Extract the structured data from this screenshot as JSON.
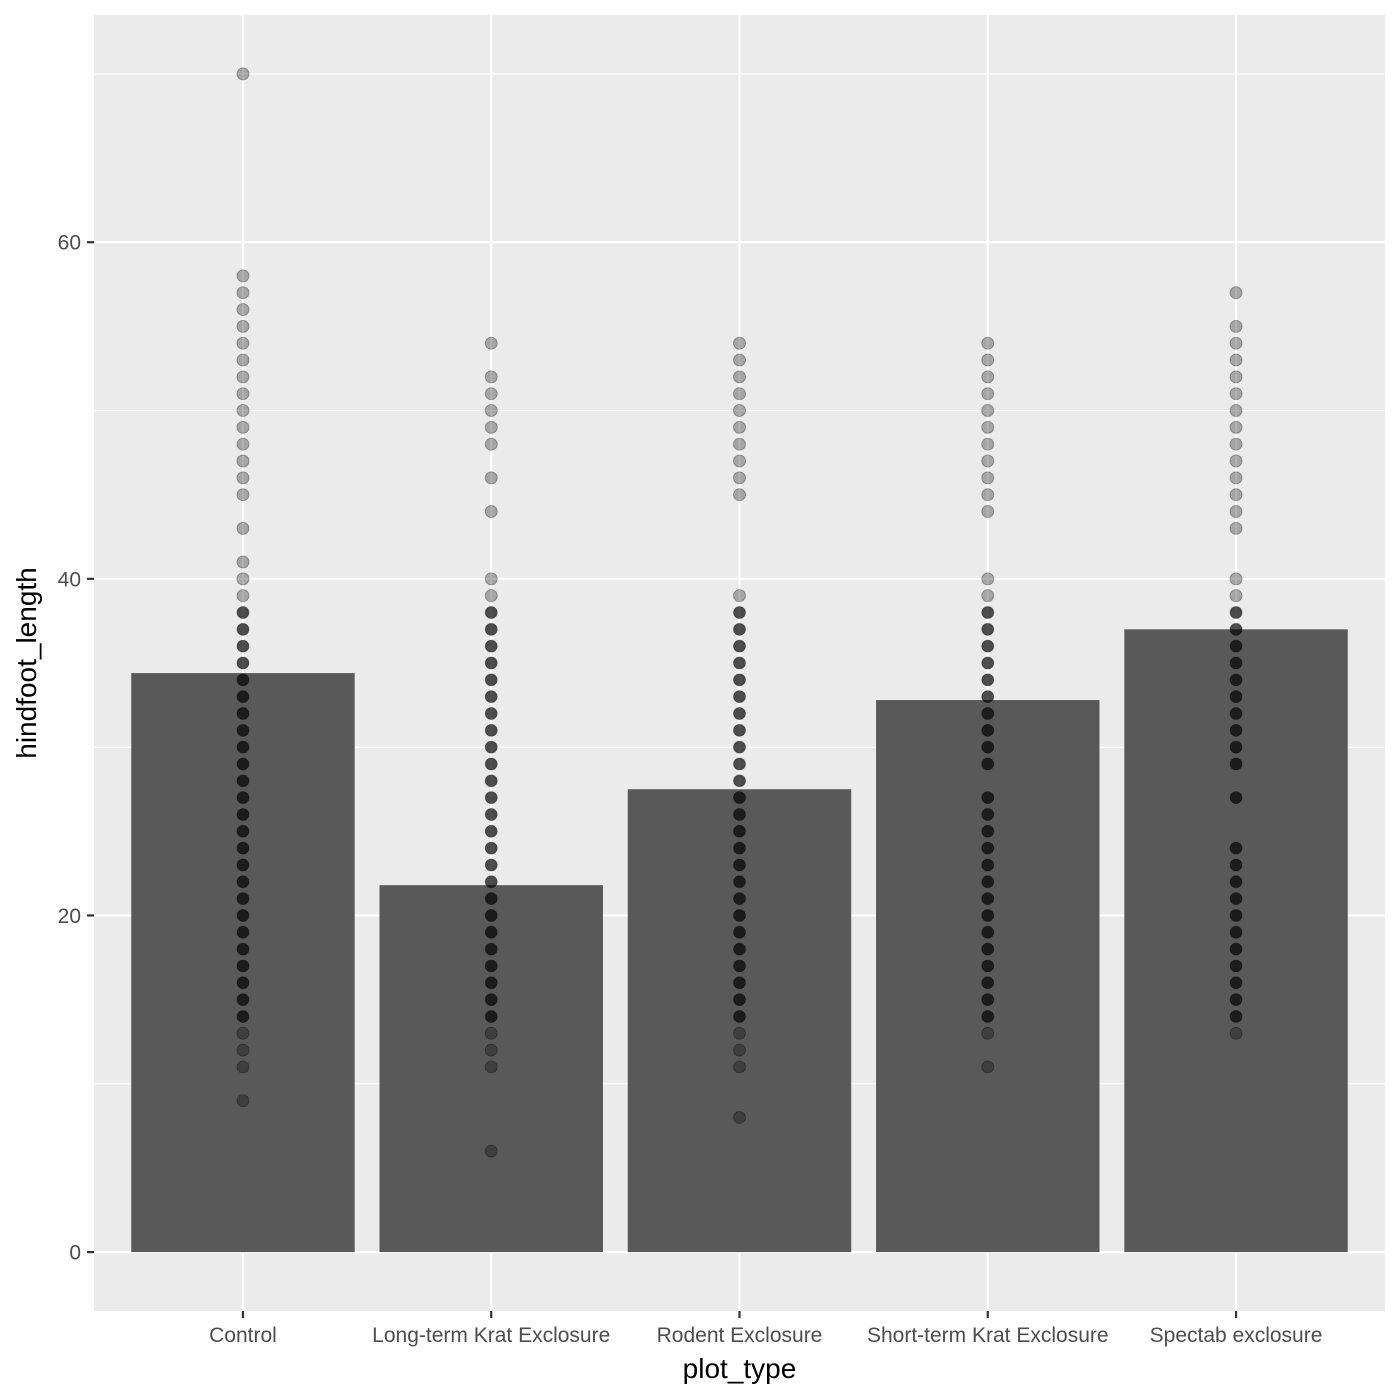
{
  "chart_data": {
    "type": "bar",
    "overlay": "scatter",
    "title": "",
    "xlabel": "plot_type",
    "ylabel": "hindfoot_length",
    "categories": [
      "Control",
      "Long-term Krat Exclosure",
      "Rodent Exclosure",
      "Short-term Krat Exclosure",
      "Spectab exclosure"
    ],
    "values": [
      34.4,
      21.8,
      27.5,
      32.8,
      37.0
    ],
    "ylim": [
      -3.5,
      73.5
    ],
    "yticks": [
      "0",
      "20",
      "40",
      "60"
    ],
    "ytick_values": [
      0,
      20,
      40,
      60
    ],
    "grid": true,
    "points": [
      [
        9,
        11,
        12,
        13,
        14,
        15,
        16,
        17,
        18,
        19,
        20,
        21,
        22,
        23,
        24,
        25,
        26,
        27,
        28,
        29,
        30,
        31,
        32,
        33,
        34,
        35,
        36,
        37,
        38,
        39,
        40,
        41,
        43,
        45,
        46,
        47,
        48,
        49,
        50,
        51,
        52,
        53,
        54,
        55,
        56,
        57,
        58,
        70
      ],
      [
        6,
        11,
        12,
        13,
        14,
        15,
        16,
        17,
        18,
        19,
        20,
        21,
        22,
        23,
        24,
        25,
        26,
        27,
        28,
        29,
        30,
        31,
        32,
        33,
        34,
        35,
        36,
        37,
        38,
        39,
        40,
        44,
        46,
        48,
        49,
        50,
        51,
        52,
        54
      ],
      [
        8,
        11,
        12,
        13,
        14,
        15,
        16,
        17,
        18,
        19,
        20,
        21,
        22,
        23,
        24,
        25,
        26,
        27,
        28,
        29,
        30,
        31,
        32,
        33,
        34,
        35,
        36,
        37,
        38,
        39,
        45,
        46,
        47,
        48,
        49,
        50,
        51,
        52,
        53,
        54
      ],
      [
        11,
        13,
        14,
        15,
        16,
        17,
        18,
        19,
        20,
        21,
        22,
        23,
        24,
        25,
        26,
        27,
        29,
        30,
        31,
        32,
        33,
        34,
        35,
        36,
        37,
        38,
        39,
        40,
        44,
        45,
        46,
        47,
        48,
        49,
        50,
        51,
        52,
        53,
        54
      ],
      [
        13,
        14,
        15,
        16,
        17,
        18,
        19,
        20,
        21,
        22,
        23,
        24,
        27,
        29,
        30,
        31,
        32,
        33,
        34,
        35,
        36,
        37,
        38,
        39,
        40,
        43,
        44,
        45,
        46,
        47,
        48,
        49,
        50,
        51,
        52,
        53,
        54,
        55,
        57
      ]
    ],
    "colors": {
      "panel": "#ebebeb",
      "grid": "#ffffff",
      "bar": "#595959",
      "point": "#000000"
    }
  }
}
